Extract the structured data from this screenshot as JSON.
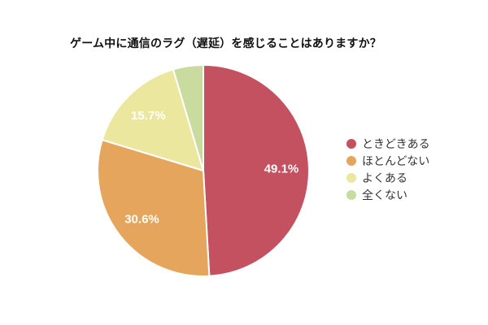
{
  "chart_data": {
    "type": "pie",
    "title": "ゲーム中に通信のラグ（遅延）を感じることはありますか？",
    "series": [
      {
        "label": "ときどきある",
        "value": 49.1,
        "pct_label": "49.1%",
        "color": "#c4515f"
      },
      {
        "label": "ほとんどない",
        "value": 30.6,
        "pct_label": "30.6%",
        "color": "#e5a55c"
      },
      {
        "label": "よくある",
        "value": 15.7,
        "pct_label": "15.7%",
        "color": "#ebe79e"
      },
      {
        "label": "全くない",
        "value": 4.6,
        "pct_label": "",
        "color": "#c9db9e"
      }
    ],
    "start_angle_deg": 0,
    "direction": "clockwise",
    "legend_position": "right",
    "slice_border_color": "#ffffff",
    "slice_label_color": "#ffffff",
    "background_color": "#ffffff"
  }
}
